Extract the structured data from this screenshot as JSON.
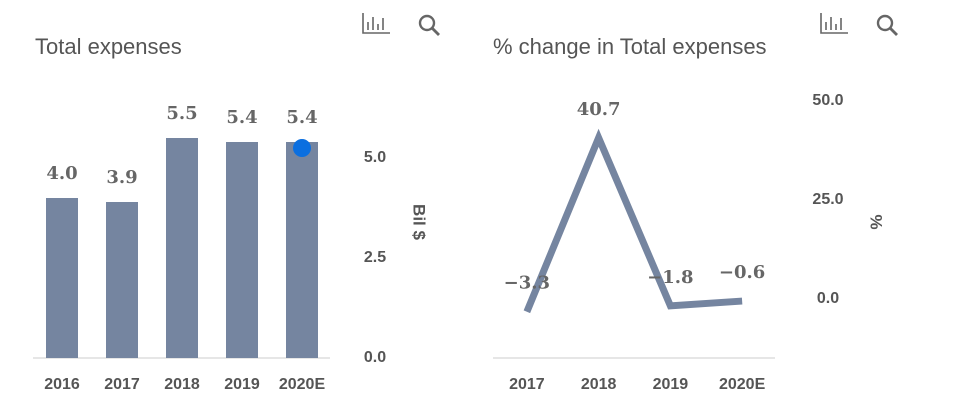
{
  "chart_data": [
    {
      "type": "bar",
      "title": "Total expenses",
      "y_label": "Bil $",
      "categories": [
        "2016",
        "2017",
        "2018",
        "2019",
        "2020E"
      ],
      "values": [
        4.0,
        3.9,
        5.5,
        5.4,
        5.4
      ],
      "value_labels": [
        "4.0",
        "3.9",
        "5.5",
        "5.4",
        "5.4"
      ],
      "color": "#7585a0",
      "highlight_last": true,
      "highlight_color": "#0b6fe0",
      "ylim": [
        0,
        5.5
      ],
      "yticks": [
        {
          "value": 0,
          "label": "0.0"
        },
        {
          "value": 2.5,
          "label": "2.5"
        },
        {
          "value": 5,
          "label": "5.0"
        }
      ],
      "grid": false
    },
    {
      "type": "line",
      "title": "% change in Total expenses",
      "y_label": "%",
      "categories": [
        "2017",
        "2018",
        "2019",
        "2020E"
      ],
      "values": [
        -3.3,
        40.7,
        -1.8,
        -0.6
      ],
      "value_labels": [
        "−3.3",
        "40.7",
        "−1.8",
        "−0.6"
      ],
      "color": "#7585a0",
      "ylim": [
        -15,
        50
      ],
      "yticks": [
        {
          "value": 0,
          "label": "0.0"
        },
        {
          "value": 25,
          "label": "25.0"
        },
        {
          "value": 50,
          "label": "50.0"
        }
      ],
      "grid": false
    }
  ]
}
